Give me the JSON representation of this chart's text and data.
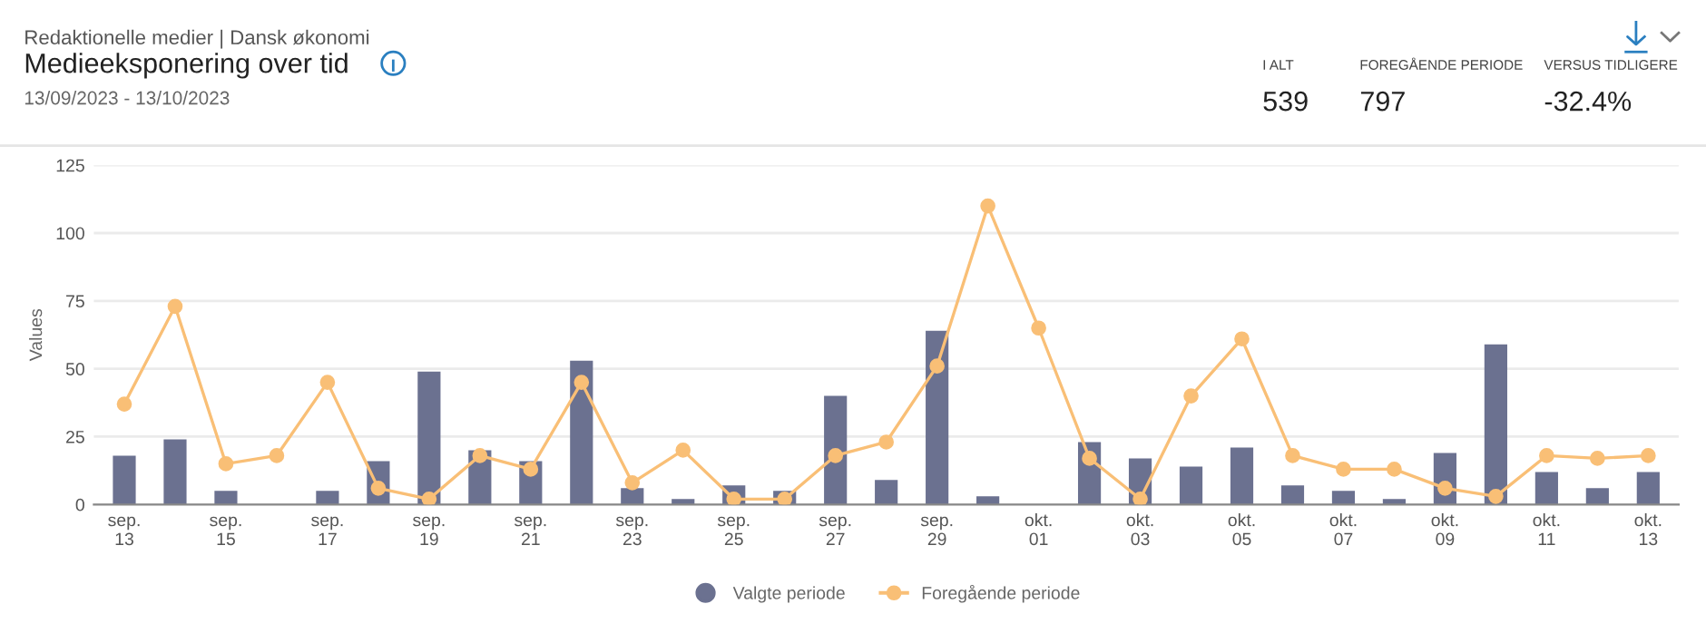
{
  "chart_data": {
    "type": "bar",
    "title": "Medieeksponering over tid",
    "subtitle": "13/09/2023 - 13/10/2023",
    "annotations": [
      "Redaktionelle medier | Dansk økonomi",
      "I ALT",
      "539",
      "FOREGÅENDE PERIODE",
      "797",
      "VERSUS TIDLIGERE",
      "-32.4%"
    ],
    "ylabel": "Values",
    "categories": [
      "sep.\n13",
      null,
      "sep.\n15",
      null,
      "sep.\n17",
      null,
      "sep.\n19",
      null,
      "sep.\n21",
      null,
      "sep.\n23",
      null,
      "sep.\n25",
      null,
      "sep.\n27",
      null,
      "sep.\n29",
      null,
      "okt.\n01",
      null,
      "okt.\n03",
      null,
      "okt.\n05",
      null,
      "okt.\n07",
      null,
      "okt.\n09",
      null,
      "okt.\n11",
      null,
      "okt.\n13"
    ],
    "series": [
      {
        "name": "Valgte periode",
        "color": "#6b7190",
        "values": [
          18,
          24,
          5,
          0,
          5,
          16,
          49,
          20,
          16,
          53,
          6,
          2,
          7,
          5,
          40,
          9,
          64,
          3,
          0,
          23,
          17,
          14,
          21,
          7,
          5,
          2,
          19,
          59,
          12,
          6,
          12
        ]
      },
      {
        "name": "Foregående periode",
        "type": "line",
        "color": "#f9bf76",
        "values": [
          37,
          73,
          15,
          18,
          45,
          6,
          2,
          18,
          13,
          45,
          8,
          20,
          2,
          2,
          18,
          23,
          51,
          110,
          65,
          17,
          2,
          40,
          61,
          18,
          13,
          13,
          6,
          3,
          18,
          17,
          18
        ]
      }
    ],
    "ylim": [
      0,
      125
    ],
    "yticks": [
      0,
      25,
      50,
      75,
      100,
      125
    ],
    "grid": "y",
    "legend": "bottom",
    "marker": "circle",
    "line_style": "solid"
  }
}
